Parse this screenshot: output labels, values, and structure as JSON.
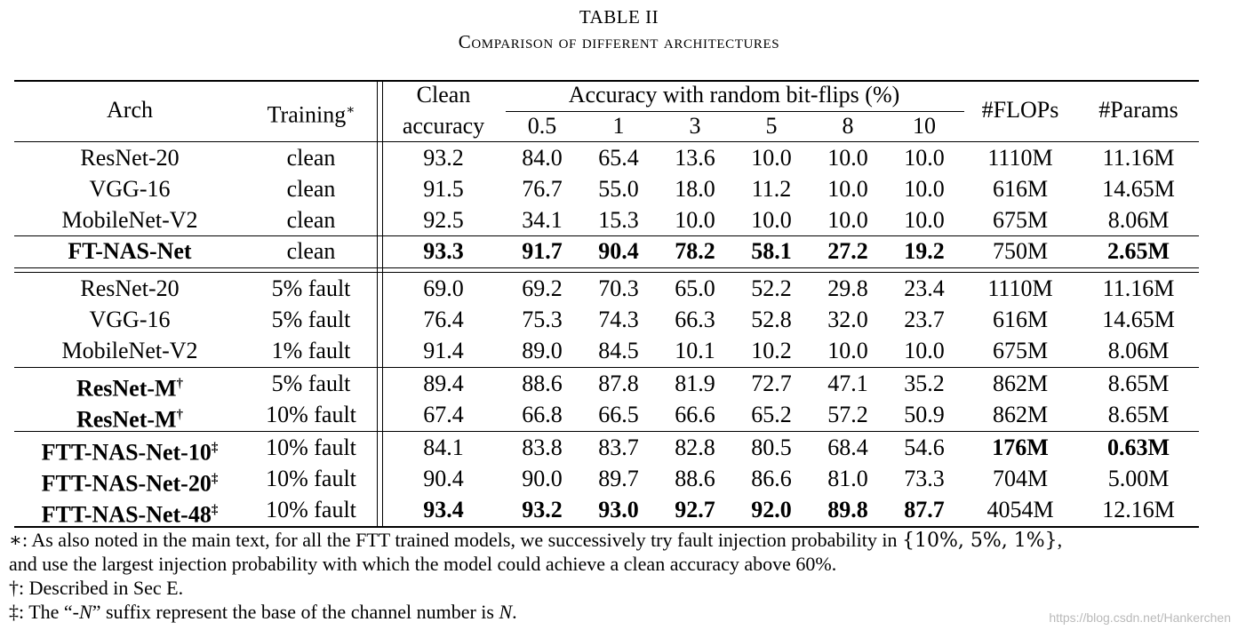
{
  "caption": {
    "title": "TABLE II",
    "subtitle": "Comparison of different architectures"
  },
  "table": {
    "headers": {
      "arch": "Arch",
      "training": "Training",
      "training_mark": "∗",
      "clean_line1": "Clean",
      "clean_line2": "accuracy",
      "group": "Accuracy with random bit-flips (%)",
      "rates": [
        "0.5",
        "1",
        "3",
        "5",
        "8",
        "10"
      ],
      "flops": "#FLOPs",
      "params": "#Params"
    },
    "rows": [
      {
        "arch": "ResNet-20",
        "mark": "",
        "training": "clean",
        "values": [
          "93.2",
          "84.0",
          "65.4",
          "13.6",
          "10.0",
          "10.0",
          "10.0",
          "1110M",
          "11.16M"
        ],
        "bold_arch": false,
        "bold": []
      },
      {
        "arch": "VGG-16",
        "mark": "",
        "training": "clean",
        "values": [
          "91.5",
          "76.7",
          "55.0",
          "18.0",
          "11.2",
          "10.0",
          "10.0",
          "616M",
          "14.65M"
        ],
        "bold_arch": false,
        "bold": []
      },
      {
        "arch": "MobileNet-V2",
        "mark": "",
        "training": "clean",
        "values": [
          "92.5",
          "34.1",
          "15.3",
          "10.0",
          "10.0",
          "10.0",
          "10.0",
          "675M",
          "8.06M"
        ],
        "bold_arch": false,
        "bold": []
      },
      {
        "arch": "FT-NAS-Net",
        "mark": "",
        "training": "clean",
        "values": [
          "93.3",
          "91.7",
          "90.4",
          "78.2",
          "58.1",
          "27.2",
          "19.2",
          "750M",
          "2.65M"
        ],
        "bold_arch": true,
        "bold": [
          0,
          1,
          2,
          3,
          4,
          5,
          6,
          8
        ]
      },
      {
        "arch": "ResNet-20",
        "mark": "",
        "training": "5% fault",
        "values": [
          "69.0",
          "69.2",
          "70.3",
          "65.0",
          "52.2",
          "29.8",
          "23.4",
          "1110M",
          "11.16M"
        ],
        "bold_arch": false,
        "bold": []
      },
      {
        "arch": "VGG-16",
        "mark": "",
        "training": "5% fault",
        "values": [
          "76.4",
          "75.3",
          "74.3",
          "66.3",
          "52.8",
          "32.0",
          "23.7",
          "616M",
          "14.65M"
        ],
        "bold_arch": false,
        "bold": []
      },
      {
        "arch": "MobileNet-V2",
        "mark": "",
        "training": "1% fault",
        "values": [
          "91.4",
          "89.0",
          "84.5",
          "10.1",
          "10.2",
          "10.0",
          "10.0",
          "675M",
          "8.06M"
        ],
        "bold_arch": false,
        "bold": []
      },
      {
        "arch": "ResNet-M",
        "mark": "†",
        "training": "5% fault",
        "values": [
          "89.4",
          "88.6",
          "87.8",
          "81.9",
          "72.7",
          "47.1",
          "35.2",
          "862M",
          "8.65M"
        ],
        "bold_arch": true,
        "bold": []
      },
      {
        "arch": "ResNet-M",
        "mark": "†",
        "training": "10% fault",
        "values": [
          "67.4",
          "66.8",
          "66.5",
          "66.6",
          "65.2",
          "57.2",
          "50.9",
          "862M",
          "8.65M"
        ],
        "bold_arch": true,
        "bold": []
      },
      {
        "arch": "FTT-NAS-Net-10",
        "mark": "‡",
        "training": "10% fault",
        "values": [
          "84.1",
          "83.8",
          "83.7",
          "82.8",
          "80.5",
          "68.4",
          "54.6",
          "176M",
          "0.63M"
        ],
        "bold_arch": true,
        "bold": [
          7,
          8
        ]
      },
      {
        "arch": "FTT-NAS-Net-20",
        "mark": "‡",
        "training": "10% fault",
        "values": [
          "90.4",
          "90.0",
          "89.7",
          "88.6",
          "86.6",
          "81.0",
          "73.3",
          "704M",
          "5.00M"
        ],
        "bold_arch": true,
        "bold": []
      },
      {
        "arch": "FTT-NAS-Net-48",
        "mark": "‡",
        "training": "10% fault",
        "values": [
          "93.4",
          "93.2",
          "93.0",
          "92.7",
          "92.0",
          "89.8",
          "87.7",
          "4054M",
          "12.16M"
        ],
        "bold_arch": true,
        "bold": [
          0,
          1,
          2,
          3,
          4,
          5,
          6
        ]
      }
    ]
  },
  "notes": {
    "star_mark": "∗",
    "star_text": ": As also noted in the main text, for all the FTT trained models, we successively try fault injection probability in ",
    "star_set": "{10%, 5%, 1%}",
    "star_end": ",",
    "star_line2": "and use the largest injection probability with which the model could achieve a clean accuracy above 60%.",
    "dagger_mark": "†",
    "dagger_text": ": Described in Sec E.",
    "ddagger_mark": "‡",
    "ddagger_pre": ": The “-",
    "ddagger_var": "N",
    "ddagger_mid": "” suffix represent the base of the channel number is ",
    "ddagger_var2": "N",
    "ddagger_end": "."
  },
  "watermark": "https://blog.csdn.net/Hankerchen"
}
